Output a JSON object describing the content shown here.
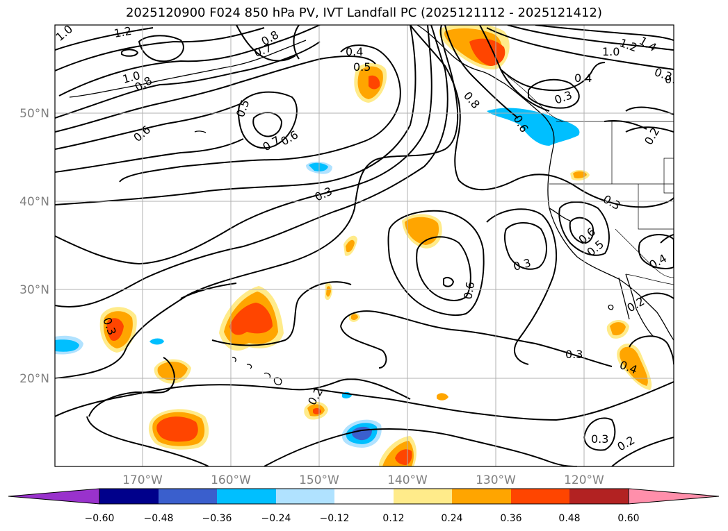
{
  "title": "2025120900 F024 850 hPa PV, IVT Landfall PC (2025121112 - 2025121412)",
  "map": {
    "lon_labels": [
      "170°W",
      "160°W",
      "150°W",
      "140°W",
      "130°W",
      "120°W"
    ],
    "lat_labels": [
      "50°N",
      "40°N",
      "30°N",
      "20°N"
    ],
    "contour_labels": [
      "1.0",
      "1.2",
      "1.4",
      "1.0",
      "1.2",
      "1.0",
      "0.8",
      "0.7",
      "0.8",
      "0.4",
      "0.5",
      "0.8",
      "0.6",
      "0.4",
      "0.3",
      "0.2",
      "0.6",
      "0.5",
      "0.7",
      "0.6",
      "0.3",
      "0.3",
      "0.6",
      "0.5",
      "0.4",
      "0.3",
      "0.6",
      "0.2",
      "0.3",
      "0.4",
      "0.3",
      "0.2",
      "0.3",
      "0.2",
      "0.3",
      "0.0"
    ],
    "colors": {
      "contour": "#000000",
      "land": "#000000",
      "grid": "#b0b0b0"
    }
  },
  "colorbar": {
    "ticks": [
      "−0.60",
      "−0.48",
      "−0.36",
      "−0.24",
      "−0.12",
      "0.12",
      "0.24",
      "0.36",
      "0.48",
      "0.60"
    ],
    "colors": [
      "#9932cc",
      "#00008b",
      "#3a5fcd",
      "#00bfff",
      "#b0e2ff",
      "#ffffff",
      "#ffeb8a",
      "#ffa500",
      "#ff4500",
      "#b22222",
      "#ff8fab"
    ]
  }
}
